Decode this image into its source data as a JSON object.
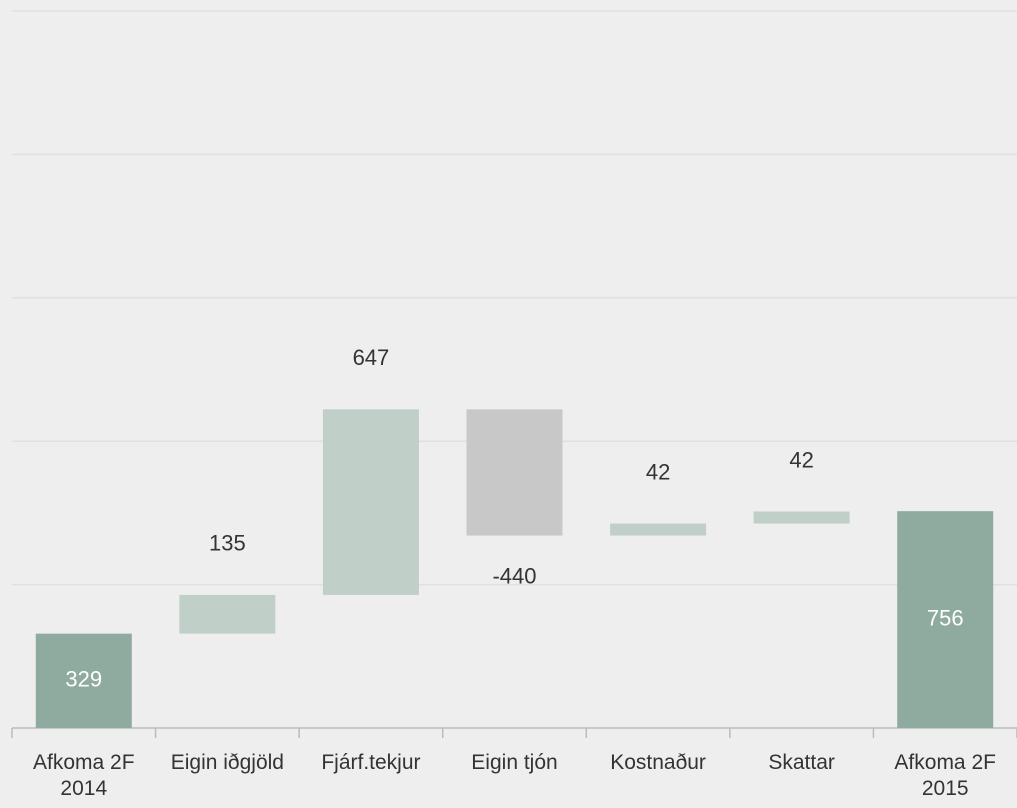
{
  "chart_data": {
    "type": "waterfall",
    "categories": [
      "Afkoma 2F 2014",
      "Eigin iðgjöld",
      "Fjárf.tekjur",
      "Eigin tjón",
      "Kostnaður",
      "Skattar",
      "Afkoma 2F 2015"
    ],
    "values": [
      329,
      135,
      647,
      -440,
      42,
      42,
      756
    ],
    "is_total": [
      true,
      false,
      false,
      false,
      false,
      false,
      true
    ],
    "colors": {
      "total": "#8faa9f",
      "increase": "#c0d0c9",
      "decrease": "#c8c8c8"
    },
    "ylim": [
      0,
      2500
    ],
    "yticks": [
      0,
      500,
      1000,
      1500,
      2000,
      2500
    ],
    "grid": true
  }
}
